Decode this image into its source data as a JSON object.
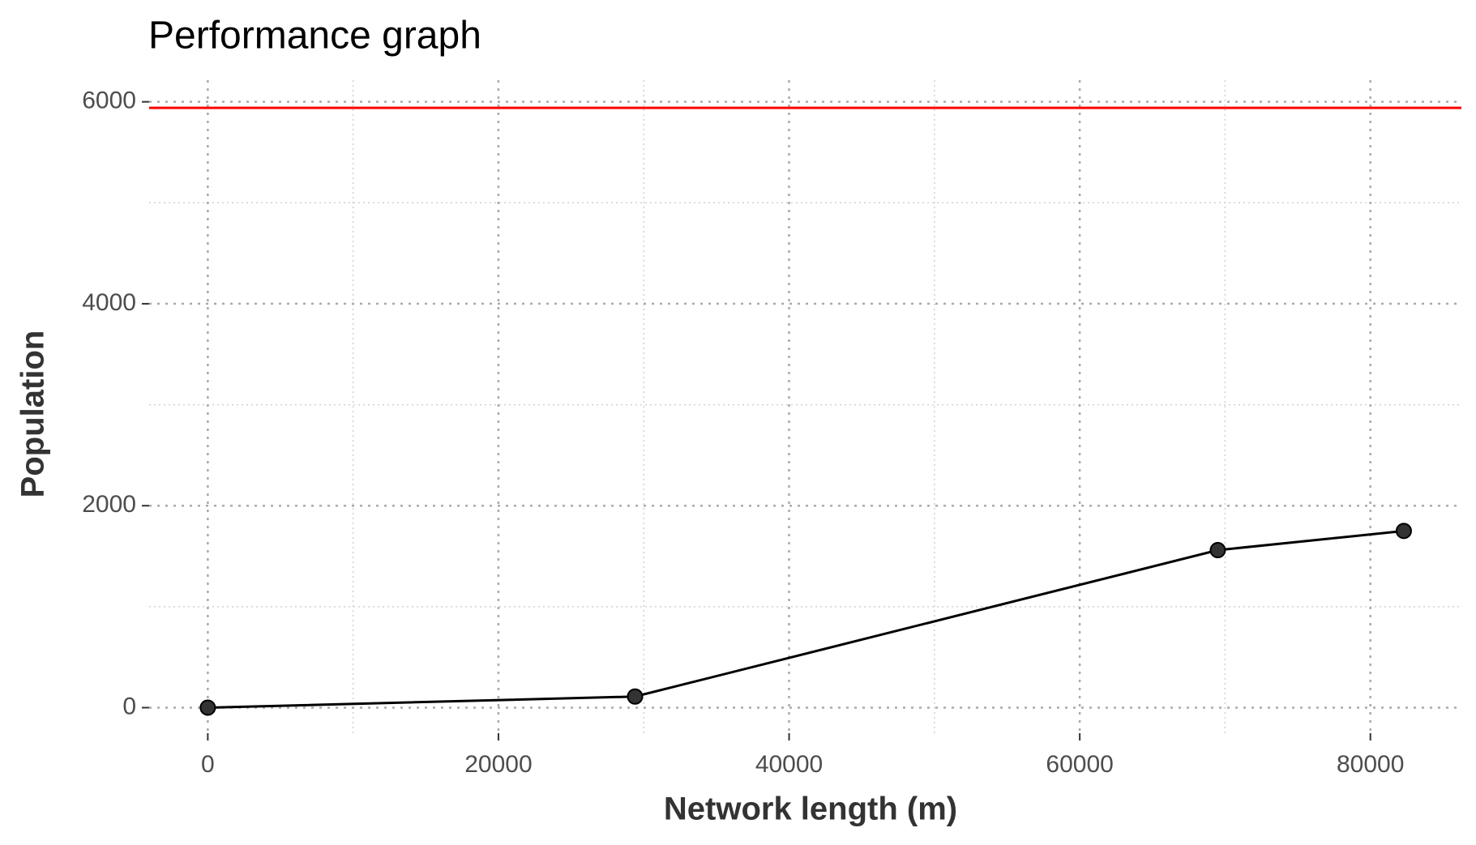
{
  "chart_data": {
    "type": "line",
    "title": "Performance graph",
    "x_label": "Network length (m)",
    "y_label": "Population",
    "x": [
      0,
      29400,
      69500,
      82300
    ],
    "series": [
      {
        "color": "#000000",
        "marker_color": "#333333",
        "values": [
          0,
          110,
          1560,
          1750
        ]
      }
    ],
    "hline": {
      "value": 5940,
      "color": "#ff0000"
    },
    "xlim": [
      -4036,
      86263
    ],
    "ylim": [
      -253,
      6214
    ],
    "xticks": [
      0,
      20000,
      40000,
      60000,
      80000
    ],
    "yticks": [
      0,
      2000,
      4000,
      6000
    ],
    "xminor": [
      10000,
      30000,
      50000,
      70000
    ],
    "yminor": [
      1000,
      3000,
      5000
    ],
    "grid": true
  }
}
